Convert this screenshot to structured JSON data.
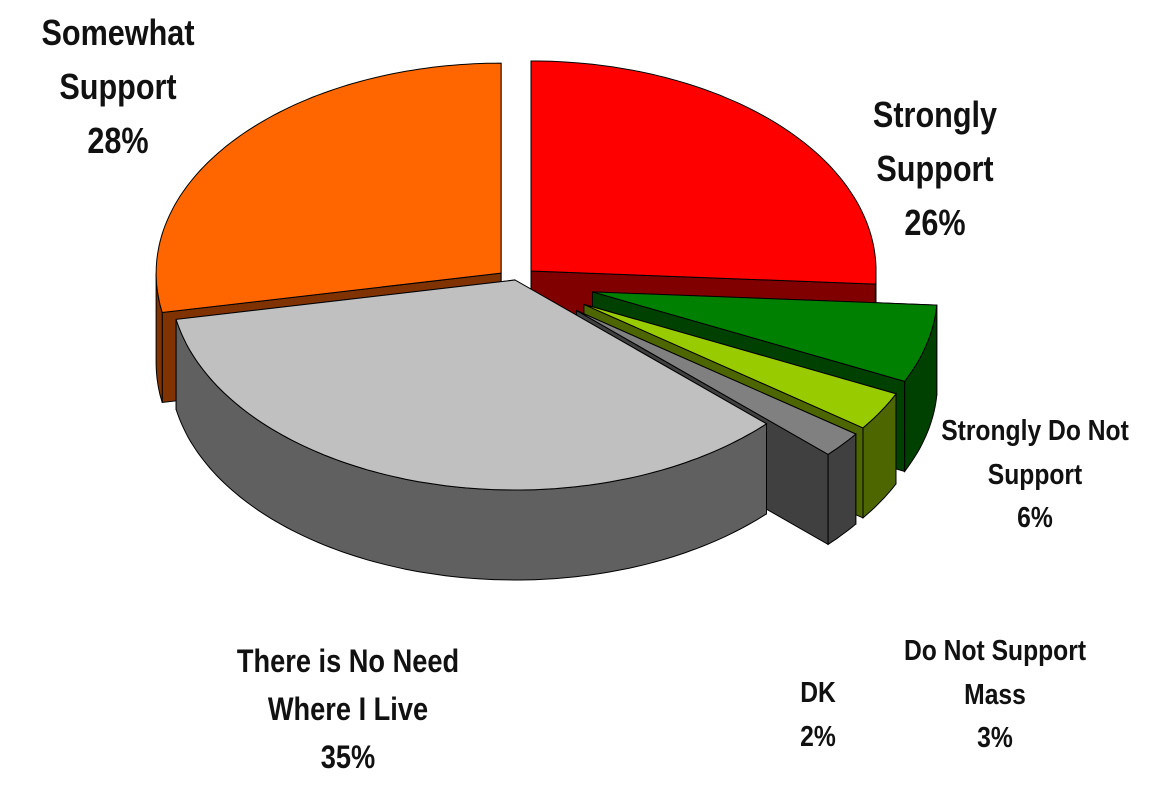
{
  "chart_data": {
    "type": "pie",
    "categories": [
      "Strongly Support",
      "Strongly Do Not Support",
      "Do Not Support Mass",
      "DK",
      "There is No Need Where I Live",
      "Somewhat Support"
    ],
    "values": [
      26,
      6,
      3,
      2,
      35,
      28
    ],
    "value_labels": [
      "26%",
      "6%",
      "3%",
      "2%",
      "35%",
      "28%"
    ],
    "colors": [
      "#ff0000",
      "#008000",
      "#99cc00",
      "#808080",
      "#c0c0c0",
      "#ff6600"
    ]
  }
}
